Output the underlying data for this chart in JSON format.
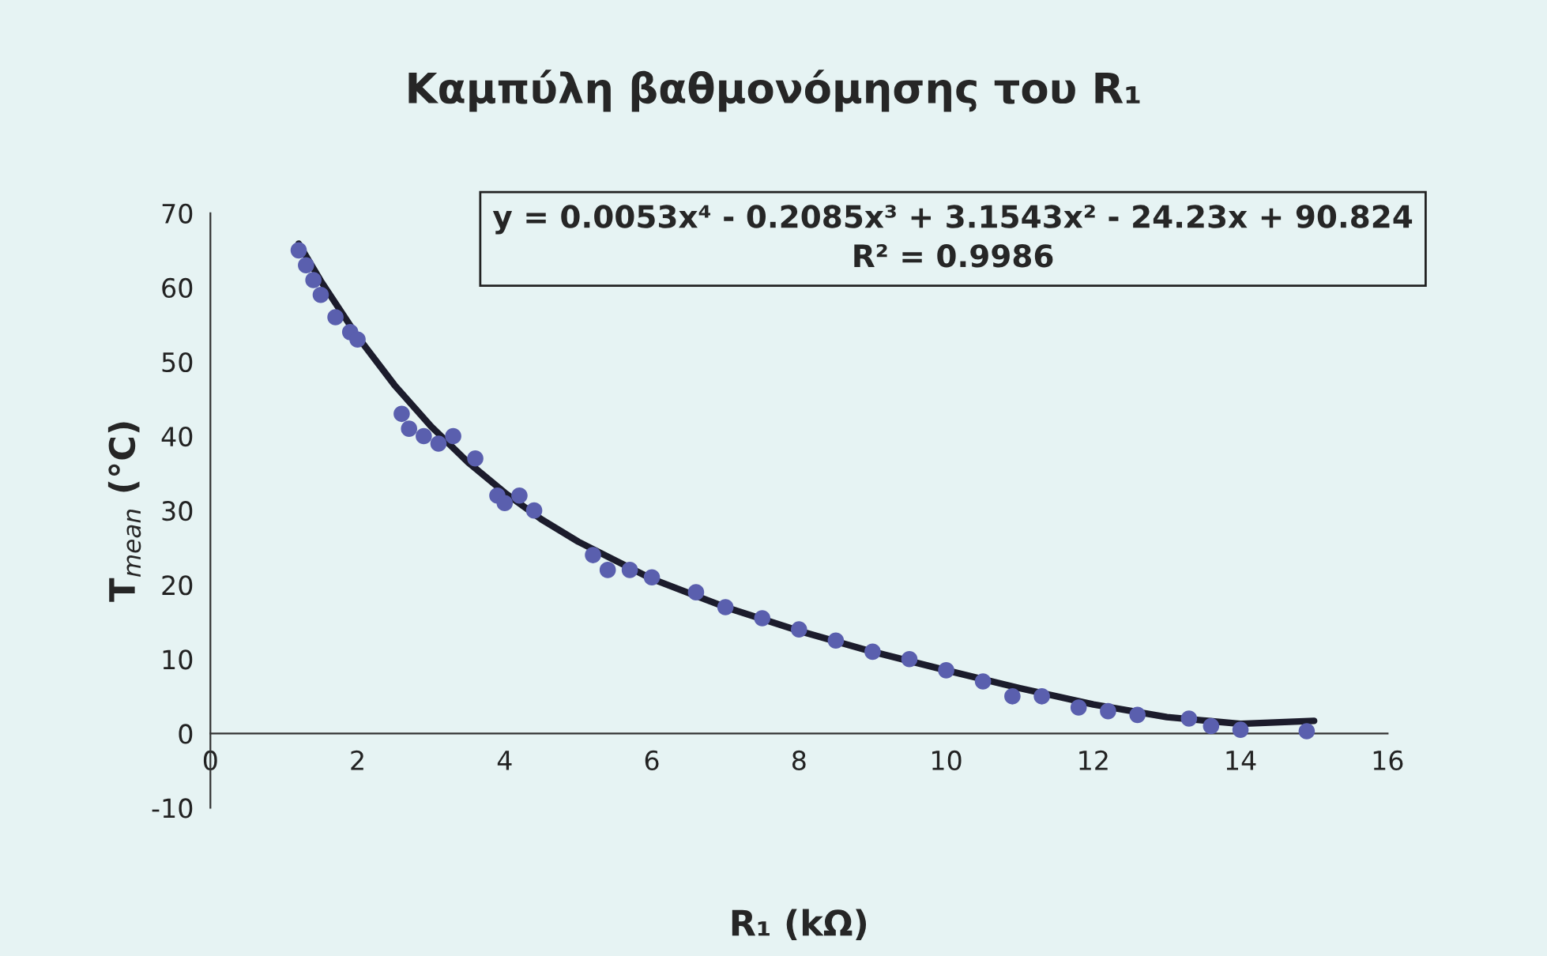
{
  "chart_data": {
    "type": "scatter",
    "title": "Καμπύλη βαθμονόμησης του R₁",
    "xlabel": "R₁ (kΩ)",
    "ylabel": "T$_{mean}$ (°C)",
    "annotations": [
      "y = 0.0053x⁴ - 0.2085x³ + 3.1543x² - 24.23x + 90.824",
      "R² = 0.9986"
    ],
    "xlim": [
      0,
      16
    ],
    "xticks": [
      0,
      2,
      4,
      6,
      8,
      10,
      12,
      14,
      16
    ],
    "ylim": [
      -10,
      70
    ],
    "yticks": [
      -10,
      0,
      10,
      20,
      30,
      40,
      50,
      60,
      70
    ],
    "grid": false,
    "marker": "circle",
    "series": [
      {
        "color": "#5a5fae",
        "x": [
          1.2,
          1.3,
          1.4,
          1.5,
          1.7,
          1.9,
          2.0,
          2.6,
          2.7,
          2.9,
          3.1,
          3.3,
          3.6,
          3.9,
          4.0,
          4.2,
          4.4,
          5.2,
          5.4,
          5.7,
          6.0,
          6.6,
          7.0,
          7.5,
          8.0,
          8.5,
          9.0,
          9.5,
          10.0,
          10.5,
          10.9,
          11.3,
          11.8,
          12.2,
          12.6,
          13.3,
          13.6,
          14.0,
          14.9
        ],
        "values": [
          65,
          63,
          61,
          59,
          56,
          54,
          53,
          43,
          41,
          40,
          39,
          40,
          37,
          32,
          31,
          32,
          30,
          24,
          22,
          22,
          21,
          19,
          17,
          15.5,
          14,
          12.5,
          11,
          10,
          8.5,
          7,
          5,
          5,
          3.5,
          3,
          2.5,
          2,
          1,
          0.5,
          0.3
        ]
      },
      {
        "type": "line",
        "color": "#1c1c2c",
        "marker": "none",
        "line_style": "solid",
        "x": [
          1.2,
          1.5,
          2,
          2.5,
          3,
          3.5,
          4,
          4.5,
          5,
          6,
          7,
          8,
          9,
          10,
          11,
          12,
          13,
          14,
          15
        ],
        "values": [
          65.9,
          60.9,
          53.4,
          46.9,
          41.3,
          36.5,
          32.4,
          28.8,
          25.8,
          20.8,
          17.0,
          13.8,
          11.0,
          8.5,
          6.1,
          3.9,
          2.2,
          1.3,
          1.7
        ]
      }
    ]
  }
}
